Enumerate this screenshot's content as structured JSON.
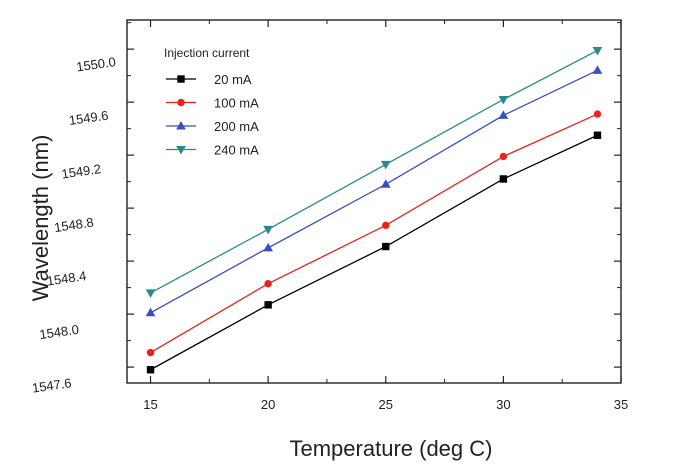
{
  "chart_data": {
    "type": "line",
    "xlabel": "Temperature (deg C)",
    "ylabel": "Wavelength (nm)",
    "xlim": [
      14,
      35
    ],
    "ylim": [
      1547.48,
      1550.22
    ],
    "xticks": [
      15,
      20,
      25,
      30,
      35
    ],
    "xtick_labels": [
      "15",
      "20",
      "25",
      "30",
      "35"
    ],
    "yticks": [
      1547.6,
      1548.0,
      1548.4,
      1548.8,
      1549.2,
      1549.6,
      1550.0
    ],
    "ytick_labels": [
      "1547.6",
      "1548.0",
      "1548.4",
      "1548.8",
      "1549.2",
      "1549.6",
      "1550.0"
    ],
    "legend_title": "Injection current",
    "legend_position": "top-left",
    "grid": false,
    "x": [
      15,
      20,
      25,
      30,
      34
    ],
    "series": [
      {
        "name": "20 mA",
        "color": "#000000",
        "marker": "square",
        "values": [
          1547.58,
          1548.07,
          1548.51,
          1549.02,
          1549.35
        ]
      },
      {
        "name": "100 mA",
        "color": "#e8221c",
        "marker": "circle",
        "values": [
          1547.71,
          1548.23,
          1548.67,
          1549.19,
          1549.51
        ]
      },
      {
        "name": "200 mA",
        "color": "#3a4fbf",
        "marker": "triangle-up",
        "values": [
          1548.01,
          1548.5,
          1548.98,
          1549.5,
          1549.84
        ]
      },
      {
        "name": "240 mA",
        "color": "#2a8a8a",
        "marker": "triangle-down",
        "values": [
          1548.16,
          1548.64,
          1549.13,
          1549.62,
          1549.99
        ]
      }
    ]
  }
}
